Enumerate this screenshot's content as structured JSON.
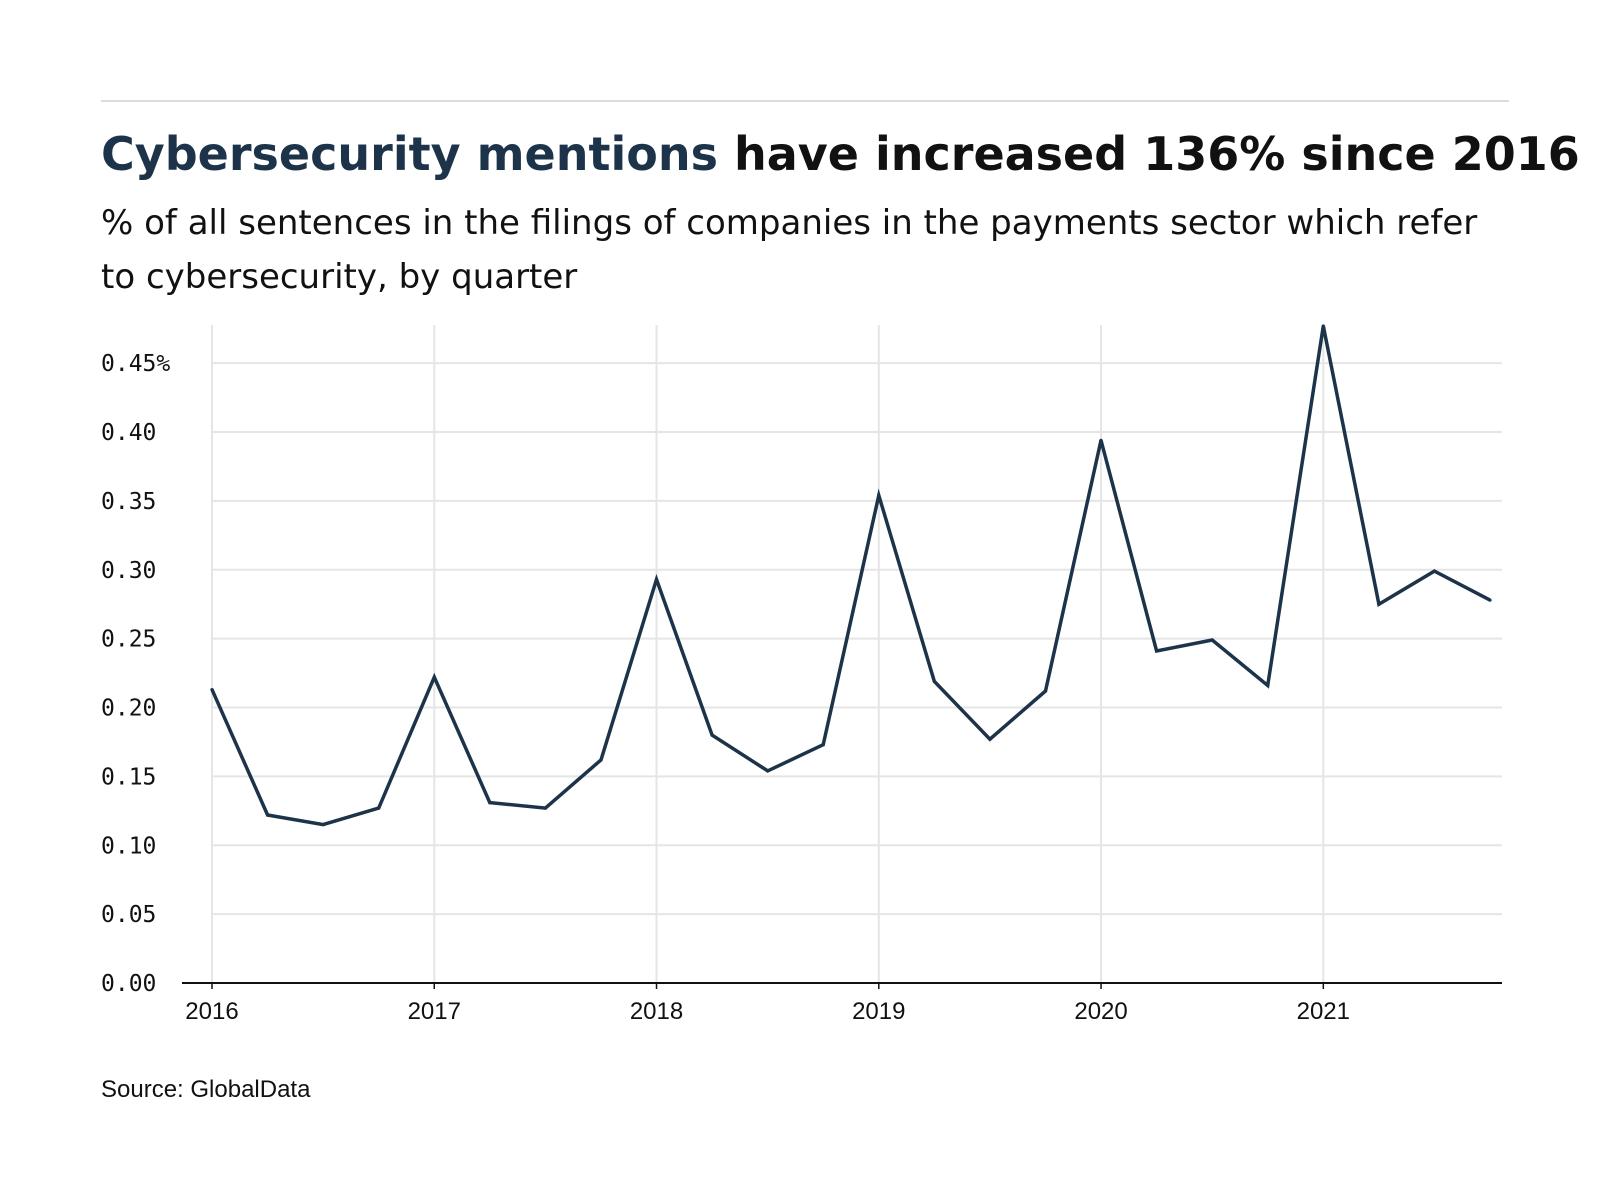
{
  "header": {
    "title_highlight": "Cybersecurity mentions",
    "title_rest": " have increased 136% since 2016",
    "subtitle": "% of all sentences in the filings of companies in the payments sector which refer to cybersecurity, by quarter"
  },
  "footer": {
    "source": "Source: GlobalData"
  },
  "colors": {
    "line": "#1d3349",
    "accent": "#1d3349",
    "grid": "#e5e5e5",
    "axis": "#111111"
  },
  "chart_data": {
    "type": "line",
    "title": "Cybersecurity mentions have increased 136% since 2016",
    "subtitle": "% of all sentences in the filings of companies in the payments sector which refer to cybersecurity, by quarter",
    "xlabel": "",
    "ylabel": "",
    "xlim": [
      2016,
      2021.75
    ],
    "ylim": [
      0,
      0.4777
    ],
    "grid": true,
    "x_ticks": [
      {
        "value": 2016,
        "label": "2016"
      },
      {
        "value": 2017,
        "label": "2017"
      },
      {
        "value": 2018,
        "label": "2018"
      },
      {
        "value": 2019,
        "label": "2019"
      },
      {
        "value": 2020,
        "label": "2020"
      },
      {
        "value": 2021,
        "label": "2021"
      }
    ],
    "y_ticks": [
      {
        "value": 0,
        "label": "0.00"
      },
      {
        "value": 0.05,
        "label": "0.05"
      },
      {
        "value": 0.1,
        "label": "0.10"
      },
      {
        "value": 0.15,
        "label": "0.15"
      },
      {
        "value": 0.2,
        "label": "0.20"
      },
      {
        "value": 0.25,
        "label": "0.25"
      },
      {
        "value": 0.3,
        "label": "0.30"
      },
      {
        "value": 0.35,
        "label": "0.35"
      },
      {
        "value": 0.4,
        "label": "0.40"
      },
      {
        "value": 0.45,
        "label": "0.45%"
      }
    ],
    "x": [
      2016,
      2016.25,
      2016.5,
      2016.75,
      2017,
      2017.25,
      2017.5,
      2017.75,
      2018,
      2018.25,
      2018.5,
      2018.75,
      2019,
      2019.25,
      2019.5,
      2019.75,
      2020,
      2020.25,
      2020.5,
      2020.75,
      2021,
      2021.25,
      2021.5,
      2021.75
    ],
    "series": [
      {
        "values": [
          0.213,
          0.122,
          0.115,
          0.127,
          0.222,
          0.131,
          0.127,
          0.162,
          0.293,
          0.18,
          0.154,
          0.173,
          0.354,
          0.219,
          0.177,
          0.212,
          0.394,
          0.241,
          0.249,
          0.216,
          0.477,
          0.275,
          0.299,
          0.278
        ]
      }
    ]
  }
}
